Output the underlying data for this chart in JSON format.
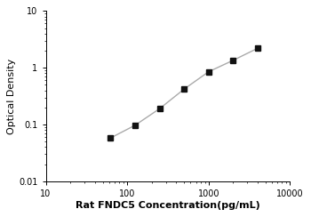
{
  "x_data": [
    62.5,
    125,
    250,
    500,
    1000,
    2000,
    4000
  ],
  "y_data": [
    0.058,
    0.097,
    0.19,
    0.42,
    0.85,
    1.35,
    2.2
  ],
  "xlabel": "Rat FNDC5 Concentration(pg/mL)",
  "ylabel": "Optical Density",
  "xlim": [
    10,
    10000
  ],
  "ylim": [
    0.01,
    10
  ],
  "line_color": "#aaaaaa",
  "marker_color": "#111111",
  "marker": "s",
  "marker_size": 4,
  "line_width": 1.0,
  "background_color": "#ffffff",
  "xlabel_fontsize": 8,
  "ylabel_fontsize": 8,
  "tick_fontsize": 7,
  "xlabel_bold": true,
  "ylabel_bold": false
}
